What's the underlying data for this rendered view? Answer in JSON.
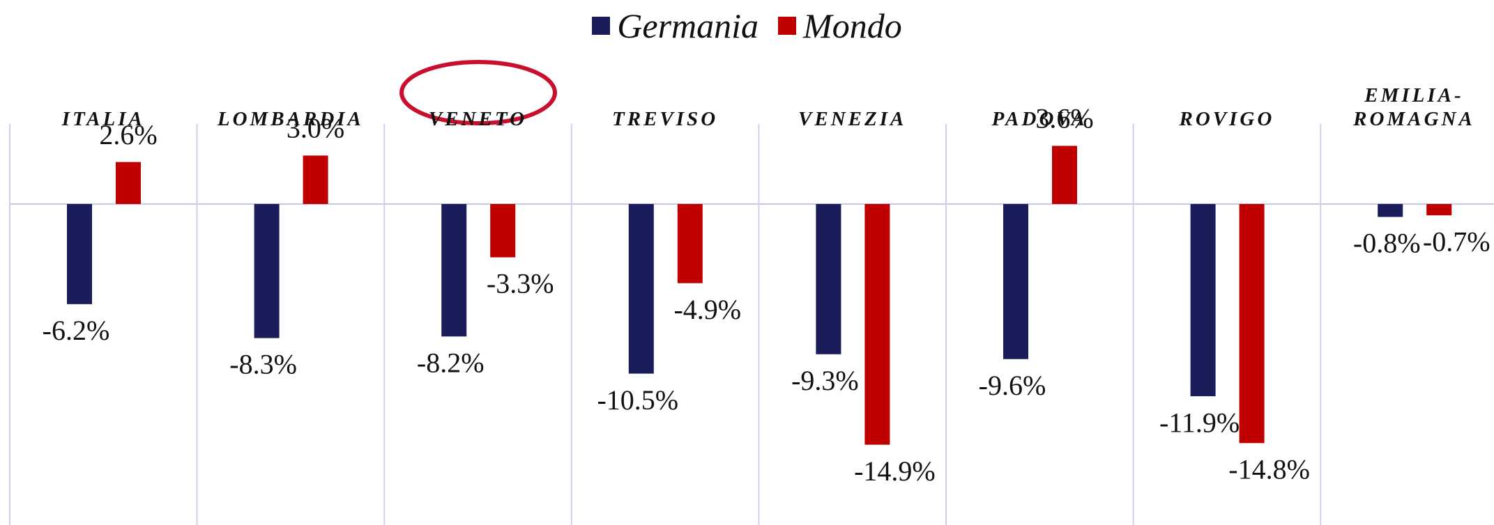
{
  "chart_data": {
    "type": "bar",
    "categories": [
      "ITALIA",
      "LOMBARDIA",
      "VENETO",
      "TREVISO",
      "VENEZIA",
      "PADOVA",
      "ROVIGO",
      "EMILIA-ROMAGNA"
    ],
    "series": [
      {
        "name": "Germania",
        "color": "#1b1c5a",
        "values": [
          -6.2,
          -8.3,
          -8.2,
          -10.5,
          -9.3,
          -9.6,
          -11.9,
          -0.8
        ],
        "value_labels": [
          "-6.2%",
          "-8.3%",
          "-8.2%",
          "-10.5%",
          "-9.3%",
          "-9.6%",
          "-11.9%",
          "-0.8%"
        ]
      },
      {
        "name": "Mondo",
        "color": "#c00000",
        "values": [
          2.6,
          3.0,
          -3.3,
          -4.9,
          -14.9,
          3.6,
          -14.8,
          -0.7
        ],
        "value_labels": [
          "2.6%",
          "3.0%",
          "-3.3%",
          "-4.9%",
          "-14.9%",
          "3.6%",
          "-14.8%",
          "-0.7%"
        ]
      }
    ],
    "legend": "top"
  }
}
